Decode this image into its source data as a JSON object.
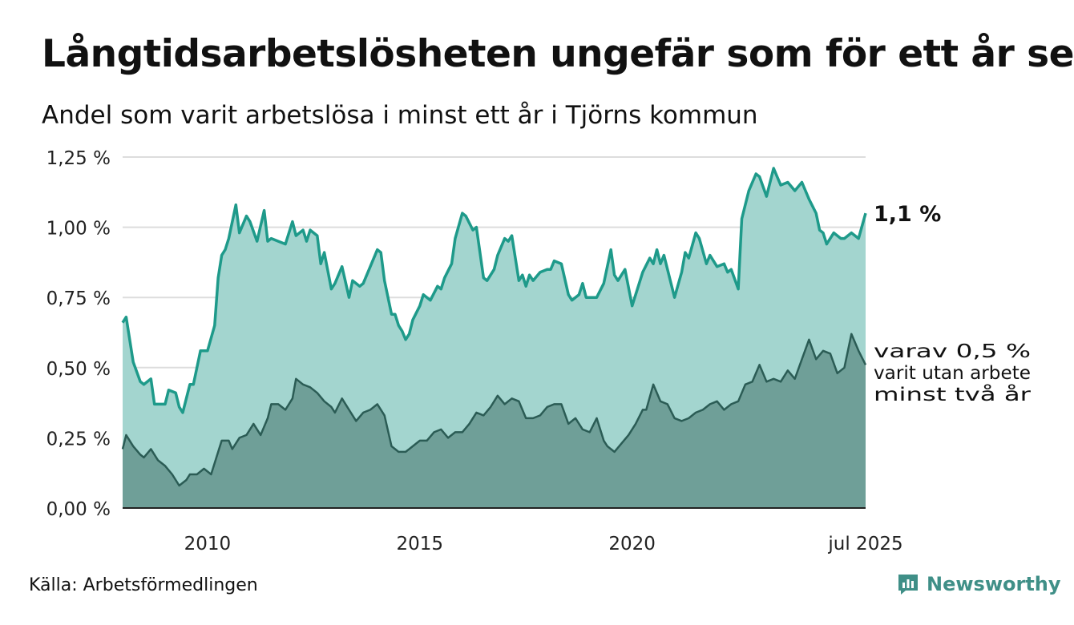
{
  "title": "Långtidsarbetslösheten ungefär som för ett år sen",
  "subtitle": "Andel som varit arbetslösa i minst ett år i Tjörns kommun",
  "source": "Källa: Arbetsförmedlingen",
  "brand": "Newsworthy",
  "colors": {
    "main_fill": "#a3d5cf",
    "main_line": "#1e9a8a",
    "sub_fill": "#6f9f98",
    "sub_line": "#2b5c55",
    "grid": "#dddddd",
    "brand": "#3f8f87"
  },
  "chart_data": {
    "type": "area",
    "ylim": [
      0,
      1.25
    ],
    "y_ticks": [
      {
        "value": 0.0,
        "label": "0,00 %"
      },
      {
        "value": 0.25,
        "label": "0,25 %"
      },
      {
        "value": 0.5,
        "label": "0,50 %"
      },
      {
        "value": 0.75,
        "label": "0,75 %"
      },
      {
        "value": 1.0,
        "label": "1,00 %"
      },
      {
        "value": 1.25,
        "label": "1,25 %"
      }
    ],
    "x_ticks": [
      {
        "x": "2010-01",
        "label": "2010"
      },
      {
        "x": "2015-01",
        "label": "2015"
      },
      {
        "x": "2020-01",
        "label": "2020"
      },
      {
        "x": "2025-07",
        "label": "jul 2025"
      }
    ],
    "x_range": [
      "2008-01",
      "2025-07"
    ],
    "annotations": {
      "main_end_label": "1,1 %",
      "sub_end_label": [
        "varav 0,5 %",
        "varit utan arbete",
        "minst två år"
      ]
    },
    "series": [
      {
        "role": "minst ett år",
        "points": [
          [
            "2008-01",
            0.66
          ],
          [
            "2008-02",
            0.68
          ],
          [
            "2008-04",
            0.52
          ],
          [
            "2008-06",
            0.45
          ],
          [
            "2008-07",
            0.44
          ],
          [
            "2008-09",
            0.46
          ],
          [
            "2008-10",
            0.37
          ],
          [
            "2008-12",
            0.37
          ],
          [
            "2009-01",
            0.37
          ],
          [
            "2009-02",
            0.42
          ],
          [
            "2009-04",
            0.41
          ],
          [
            "2009-05",
            0.36
          ],
          [
            "2009-06",
            0.34
          ],
          [
            "2009-08",
            0.44
          ],
          [
            "2009-09",
            0.44
          ],
          [
            "2009-11",
            0.56
          ],
          [
            "2010-01",
            0.56
          ],
          [
            "2010-03",
            0.65
          ],
          [
            "2010-04",
            0.82
          ],
          [
            "2010-05",
            0.9
          ],
          [
            "2010-06",
            0.92
          ],
          [
            "2010-07",
            0.96
          ],
          [
            "2010-09",
            1.08
          ],
          [
            "2010-10",
            0.98
          ],
          [
            "2010-12",
            1.04
          ],
          [
            "2011-01",
            1.02
          ],
          [
            "2011-03",
            0.95
          ],
          [
            "2011-05",
            1.06
          ],
          [
            "2011-06",
            0.95
          ],
          [
            "2011-07",
            0.96
          ],
          [
            "2011-09",
            0.95
          ],
          [
            "2011-11",
            0.94
          ],
          [
            "2012-01",
            1.02
          ],
          [
            "2012-02",
            0.97
          ],
          [
            "2012-04",
            0.99
          ],
          [
            "2012-05",
            0.95
          ],
          [
            "2012-06",
            0.99
          ],
          [
            "2012-08",
            0.97
          ],
          [
            "2012-09",
            0.87
          ],
          [
            "2012-10",
            0.91
          ],
          [
            "2012-12",
            0.78
          ],
          [
            "2013-01",
            0.8
          ],
          [
            "2013-03",
            0.86
          ],
          [
            "2013-05",
            0.75
          ],
          [
            "2013-06",
            0.81
          ],
          [
            "2013-08",
            0.79
          ],
          [
            "2013-09",
            0.8
          ],
          [
            "2013-11",
            0.86
          ],
          [
            "2014-01",
            0.92
          ],
          [
            "2014-02",
            0.91
          ],
          [
            "2014-03",
            0.81
          ],
          [
            "2014-05",
            0.69
          ],
          [
            "2014-06",
            0.69
          ],
          [
            "2014-07",
            0.65
          ],
          [
            "2014-08",
            0.63
          ],
          [
            "2014-09",
            0.6
          ],
          [
            "2014-10",
            0.62
          ],
          [
            "2014-11",
            0.67
          ],
          [
            "2015-01",
            0.72
          ],
          [
            "2015-02",
            0.76
          ],
          [
            "2015-04",
            0.74
          ],
          [
            "2015-06",
            0.79
          ],
          [
            "2015-07",
            0.78
          ],
          [
            "2015-08",
            0.82
          ],
          [
            "2015-10",
            0.87
          ],
          [
            "2015-11",
            0.96
          ],
          [
            "2016-01",
            1.05
          ],
          [
            "2016-02",
            1.04
          ],
          [
            "2016-04",
            0.99
          ],
          [
            "2016-05",
            1.0
          ],
          [
            "2016-07",
            0.82
          ],
          [
            "2016-08",
            0.81
          ],
          [
            "2016-10",
            0.85
          ],
          [
            "2016-11",
            0.9
          ],
          [
            "2017-01",
            0.96
          ],
          [
            "2017-02",
            0.95
          ],
          [
            "2017-03",
            0.97
          ],
          [
            "2017-05",
            0.81
          ],
          [
            "2017-06",
            0.83
          ],
          [
            "2017-07",
            0.79
          ],
          [
            "2017-08",
            0.83
          ],
          [
            "2017-09",
            0.81
          ],
          [
            "2017-11",
            0.84
          ],
          [
            "2018-01",
            0.85
          ],
          [
            "2018-02",
            0.85
          ],
          [
            "2018-03",
            0.88
          ],
          [
            "2018-05",
            0.87
          ],
          [
            "2018-07",
            0.76
          ],
          [
            "2018-08",
            0.74
          ],
          [
            "2018-10",
            0.76
          ],
          [
            "2018-11",
            0.8
          ],
          [
            "2018-12",
            0.75
          ],
          [
            "2019-01",
            0.75
          ],
          [
            "2019-03",
            0.75
          ],
          [
            "2019-05",
            0.8
          ],
          [
            "2019-07",
            0.92
          ],
          [
            "2019-08",
            0.83
          ],
          [
            "2019-09",
            0.81
          ],
          [
            "2019-11",
            0.85
          ],
          [
            "2020-01",
            0.72
          ],
          [
            "2020-03",
            0.8
          ],
          [
            "2020-04",
            0.84
          ],
          [
            "2020-06",
            0.89
          ],
          [
            "2020-07",
            0.87
          ],
          [
            "2020-08",
            0.92
          ],
          [
            "2020-09",
            0.87
          ],
          [
            "2020-10",
            0.9
          ],
          [
            "2020-12",
            0.8
          ],
          [
            "2021-01",
            0.75
          ],
          [
            "2021-03",
            0.84
          ],
          [
            "2021-04",
            0.91
          ],
          [
            "2021-05",
            0.89
          ],
          [
            "2021-07",
            0.98
          ],
          [
            "2021-08",
            0.96
          ],
          [
            "2021-10",
            0.87
          ],
          [
            "2021-11",
            0.9
          ],
          [
            "2022-01",
            0.86
          ],
          [
            "2022-03",
            0.87
          ],
          [
            "2022-04",
            0.84
          ],
          [
            "2022-05",
            0.85
          ],
          [
            "2022-07",
            0.78
          ],
          [
            "2022-08",
            1.03
          ],
          [
            "2022-10",
            1.13
          ],
          [
            "2022-12",
            1.19
          ],
          [
            "2023-01",
            1.18
          ],
          [
            "2023-03",
            1.11
          ],
          [
            "2023-05",
            1.21
          ],
          [
            "2023-06",
            1.18
          ],
          [
            "2023-07",
            1.15
          ],
          [
            "2023-09",
            1.16
          ],
          [
            "2023-11",
            1.13
          ],
          [
            "2024-01",
            1.16
          ],
          [
            "2024-03",
            1.1
          ],
          [
            "2024-05",
            1.05
          ],
          [
            "2024-06",
            0.99
          ],
          [
            "2024-07",
            0.98
          ],
          [
            "2024-08",
            0.94
          ],
          [
            "2024-10",
            0.98
          ],
          [
            "2024-12",
            0.96
          ],
          [
            "2025-01",
            0.96
          ],
          [
            "2025-03",
            0.98
          ],
          [
            "2025-05",
            0.96
          ],
          [
            "2025-07",
            1.05
          ]
        ]
      },
      {
        "role": "minst två år",
        "points": [
          [
            "2008-01",
            0.21
          ],
          [
            "2008-02",
            0.26
          ],
          [
            "2008-04",
            0.22
          ],
          [
            "2008-06",
            0.19
          ],
          [
            "2008-07",
            0.18
          ],
          [
            "2008-09",
            0.21
          ],
          [
            "2008-11",
            0.17
          ],
          [
            "2009-01",
            0.15
          ],
          [
            "2009-03",
            0.12
          ],
          [
            "2009-05",
            0.08
          ],
          [
            "2009-07",
            0.1
          ],
          [
            "2009-08",
            0.12
          ],
          [
            "2009-10",
            0.12
          ],
          [
            "2009-12",
            0.14
          ],
          [
            "2010-02",
            0.12
          ],
          [
            "2010-04",
            0.2
          ],
          [
            "2010-05",
            0.24
          ],
          [
            "2010-07",
            0.24
          ],
          [
            "2010-08",
            0.21
          ],
          [
            "2010-10",
            0.25
          ],
          [
            "2010-12",
            0.26
          ],
          [
            "2011-02",
            0.3
          ],
          [
            "2011-04",
            0.26
          ],
          [
            "2011-06",
            0.32
          ],
          [
            "2011-07",
            0.37
          ],
          [
            "2011-09",
            0.37
          ],
          [
            "2011-11",
            0.35
          ],
          [
            "2012-01",
            0.39
          ],
          [
            "2012-02",
            0.46
          ],
          [
            "2012-04",
            0.44
          ],
          [
            "2012-06",
            0.43
          ],
          [
            "2012-08",
            0.41
          ],
          [
            "2012-10",
            0.38
          ],
          [
            "2012-12",
            0.36
          ],
          [
            "2013-01",
            0.34
          ],
          [
            "2013-03",
            0.39
          ],
          [
            "2013-05",
            0.35
          ],
          [
            "2013-07",
            0.31
          ],
          [
            "2013-09",
            0.34
          ],
          [
            "2013-11",
            0.35
          ],
          [
            "2014-01",
            0.37
          ],
          [
            "2014-03",
            0.33
          ],
          [
            "2014-05",
            0.22
          ],
          [
            "2014-07",
            0.2
          ],
          [
            "2014-09",
            0.2
          ],
          [
            "2014-11",
            0.22
          ],
          [
            "2015-01",
            0.24
          ],
          [
            "2015-03",
            0.24
          ],
          [
            "2015-05",
            0.27
          ],
          [
            "2015-07",
            0.28
          ],
          [
            "2015-09",
            0.25
          ],
          [
            "2015-11",
            0.27
          ],
          [
            "2016-01",
            0.27
          ],
          [
            "2016-03",
            0.3
          ],
          [
            "2016-05",
            0.34
          ],
          [
            "2016-07",
            0.33
          ],
          [
            "2016-09",
            0.36
          ],
          [
            "2016-11",
            0.4
          ],
          [
            "2017-01",
            0.37
          ],
          [
            "2017-03",
            0.39
          ],
          [
            "2017-05",
            0.38
          ],
          [
            "2017-07",
            0.32
          ],
          [
            "2017-09",
            0.32
          ],
          [
            "2017-11",
            0.33
          ],
          [
            "2018-01",
            0.36
          ],
          [
            "2018-03",
            0.37
          ],
          [
            "2018-05",
            0.37
          ],
          [
            "2018-07",
            0.3
          ],
          [
            "2018-09",
            0.32
          ],
          [
            "2018-11",
            0.28
          ],
          [
            "2019-01",
            0.27
          ],
          [
            "2019-03",
            0.32
          ],
          [
            "2019-05",
            0.24
          ],
          [
            "2019-06",
            0.22
          ],
          [
            "2019-08",
            0.2
          ],
          [
            "2019-10",
            0.23
          ],
          [
            "2019-12",
            0.26
          ],
          [
            "2020-02",
            0.3
          ],
          [
            "2020-04",
            0.35
          ],
          [
            "2020-05",
            0.35
          ],
          [
            "2020-07",
            0.44
          ],
          [
            "2020-09",
            0.38
          ],
          [
            "2020-11",
            0.37
          ],
          [
            "2021-01",
            0.32
          ],
          [
            "2021-03",
            0.31
          ],
          [
            "2021-05",
            0.32
          ],
          [
            "2021-07",
            0.34
          ],
          [
            "2021-09",
            0.35
          ],
          [
            "2021-11",
            0.37
          ],
          [
            "2022-01",
            0.38
          ],
          [
            "2022-03",
            0.35
          ],
          [
            "2022-05",
            0.37
          ],
          [
            "2022-07",
            0.38
          ],
          [
            "2022-09",
            0.44
          ],
          [
            "2022-11",
            0.45
          ],
          [
            "2023-01",
            0.51
          ],
          [
            "2023-03",
            0.45
          ],
          [
            "2023-05",
            0.46
          ],
          [
            "2023-07",
            0.45
          ],
          [
            "2023-09",
            0.49
          ],
          [
            "2023-11",
            0.46
          ],
          [
            "2024-01",
            0.53
          ],
          [
            "2024-03",
            0.6
          ],
          [
            "2024-05",
            0.53
          ],
          [
            "2024-07",
            0.56
          ],
          [
            "2024-09",
            0.55
          ],
          [
            "2024-11",
            0.48
          ],
          [
            "2025-01",
            0.5
          ],
          [
            "2025-03",
            0.62
          ],
          [
            "2025-05",
            0.56
          ],
          [
            "2025-07",
            0.51
          ]
        ]
      }
    ]
  }
}
